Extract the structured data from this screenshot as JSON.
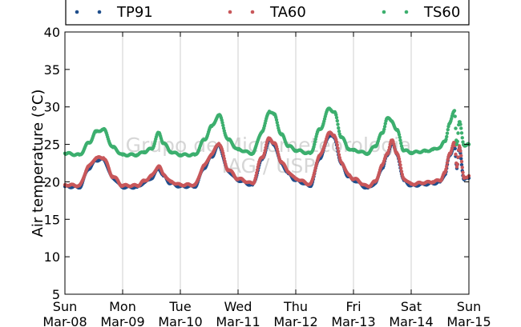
{
  "chart_data": {
    "type": "scatter",
    "title": "",
    "xlabel": "",
    "ylabel": "Air temperature (°C)",
    "ylim": [
      5,
      40
    ],
    "xlim": [
      "2015-03-08",
      "2015-03-15"
    ],
    "yticks": [
      5,
      10,
      15,
      20,
      25,
      30,
      35,
      40
    ],
    "xticks": [
      {
        "day": "Sun",
        "date": "Mar-08"
      },
      {
        "day": "Mon",
        "date": "Mar-09"
      },
      {
        "day": "Tue",
        "date": "Mar-10"
      },
      {
        "day": "Wed",
        "date": "Mar-11"
      },
      {
        "day": "Thu",
        "date": "Mar-12"
      },
      {
        "day": "Fri",
        "date": "Mar-13"
      },
      {
        "day": "Sat",
        "date": "Mar-14"
      },
      {
        "day": "Sun",
        "date": "Mar-15"
      }
    ],
    "grid": "vertical",
    "legend_position": "top",
    "watermark": [
      "Grupo de Micrometeorologia",
      "IAG / USP"
    ],
    "series": [
      {
        "name": "TP91",
        "color": "#1f4e8c",
        "x": [
          "03-08 00:00",
          "03-08 06:00",
          "03-08 10:00",
          "03-08 13:00",
          "03-08 16:00",
          "03-08 20:00",
          "03-09 00:00",
          "03-09 06:00",
          "03-09 09:00",
          "03-09 12:00",
          "03-09 15:00",
          "03-09 17:00",
          "03-09 20:00",
          "03-10 00:00",
          "03-10 06:00",
          "03-10 10:00",
          "03-10 13:00",
          "03-10 16:00",
          "03-10 20:00",
          "03-11 00:00",
          "03-11 06:00",
          "03-11 10:00",
          "03-11 13:00",
          "03-11 15:00",
          "03-11 18:00",
          "03-11 21:00",
          "03-12 00:00",
          "03-12 06:00",
          "03-12 10:00",
          "03-12 14:00",
          "03-12 16:00",
          "03-12 19:00",
          "03-12 22:00",
          "03-13 00:00",
          "03-13 06:00",
          "03-13 09:00",
          "03-13 12:00",
          "03-13 14:00",
          "03-13 16:00",
          "03-13 18:00",
          "03-13 21:00",
          "03-14 00:00",
          "03-14 06:00",
          "03-14 09:00",
          "03-14 12:00",
          "03-14 14:00",
          "03-14 16:00",
          "03-14 18:00",
          "03-14 19:00",
          "03-14 20:00",
          "03-14 22:00",
          "03-15 00:00"
        ],
        "y": [
          19.4,
          19.3,
          21.8,
          22.9,
          23.0,
          20.5,
          19.3,
          19.3,
          19.9,
          20.5,
          21.8,
          20.8,
          19.8,
          19.4,
          19.4,
          21.9,
          23.4,
          24.9,
          21.4,
          20.2,
          19.6,
          23.0,
          25.6,
          25.0,
          22.5,
          21.1,
          20.2,
          19.5,
          23.2,
          26.2,
          25.9,
          22.4,
          20.7,
          20.2,
          19.2,
          19.8,
          21.9,
          23.5,
          25.3,
          23.7,
          20.2,
          19.5,
          19.7,
          19.8,
          20.0,
          21.0,
          23.5,
          24.9,
          21.8,
          24.5,
          20.3,
          20.5
        ]
      },
      {
        "name": "TA60",
        "color": "#c8575a",
        "x": [
          "03-08 00:00",
          "03-08 06:00",
          "03-08 10:00",
          "03-08 13:00",
          "03-08 16:00",
          "03-08 20:00",
          "03-09 00:00",
          "03-09 06:00",
          "03-09 09:00",
          "03-09 12:00",
          "03-09 15:00",
          "03-09 17:00",
          "03-09 20:00",
          "03-10 00:00",
          "03-10 06:00",
          "03-10 10:00",
          "03-10 13:00",
          "03-10 16:00",
          "03-10 20:00",
          "03-11 00:00",
          "03-11 06:00",
          "03-11 10:00",
          "03-11 13:00",
          "03-11 15:00",
          "03-11 18:00",
          "03-11 21:00",
          "03-12 00:00",
          "03-12 06:00",
          "03-12 10:00",
          "03-12 14:00",
          "03-12 16:00",
          "03-12 19:00",
          "03-12 22:00",
          "03-13 00:00",
          "03-13 06:00",
          "03-13 09:00",
          "03-13 12:00",
          "03-13 14:00",
          "03-13 16:00",
          "03-13 18:00",
          "03-13 21:00",
          "03-14 00:00",
          "03-14 06:00",
          "03-14 09:00",
          "03-14 12:00",
          "03-14 14:00",
          "03-14 16:00",
          "03-14 18:00",
          "03-14 19:00",
          "03-14 20:00",
          "03-14 22:00",
          "03-15 00:00"
        ],
        "y": [
          19.6,
          19.5,
          22.1,
          23.2,
          23.2,
          20.7,
          19.5,
          19.5,
          20.1,
          20.8,
          22.1,
          21.0,
          20.0,
          19.6,
          19.6,
          22.2,
          23.7,
          25.1,
          21.6,
          20.4,
          19.8,
          23.3,
          25.8,
          25.2,
          22.7,
          21.3,
          20.4,
          19.7,
          23.5,
          26.5,
          26.2,
          22.6,
          20.9,
          20.4,
          19.4,
          20.0,
          22.2,
          23.8,
          25.5,
          23.9,
          20.4,
          19.7,
          19.9,
          20.0,
          20.2,
          21.2,
          23.8,
          25.2,
          22.0,
          24.8,
          20.5,
          20.8
        ]
      },
      {
        "name": "TS60",
        "color": "#3caf6e",
        "x": [
          "03-08 00:00",
          "03-08 06:00",
          "03-08 10:00",
          "03-08 13:00",
          "03-08 16:00",
          "03-08 20:00",
          "03-09 00:00",
          "03-09 06:00",
          "03-09 09:00",
          "03-09 12:00",
          "03-09 15:00",
          "03-09 17:00",
          "03-09 20:00",
          "03-10 00:00",
          "03-10 06:00",
          "03-10 10:00",
          "03-10 13:00",
          "03-10 16:00",
          "03-10 20:00",
          "03-11 00:00",
          "03-11 06:00",
          "03-11 10:00",
          "03-11 13:00",
          "03-11 15:00",
          "03-11 18:00",
          "03-11 21:00",
          "03-12 00:00",
          "03-12 06:00",
          "03-12 10:00",
          "03-12 14:00",
          "03-12 16:00",
          "03-12 19:00",
          "03-12 22:00",
          "03-13 00:00",
          "03-13 06:00",
          "03-13 09:00",
          "03-13 12:00",
          "03-13 14:00",
          "03-13 16:00",
          "03-13 18:00",
          "03-13 21:00",
          "03-14 00:00",
          "03-14 06:00",
          "03-14 09:00",
          "03-14 12:00",
          "03-14 14:00",
          "03-14 16:00",
          "03-14 18:00",
          "03-14 19:00",
          "03-14 20:00",
          "03-14 22:00",
          "03-15 00:00"
        ],
        "y": [
          23.8,
          23.6,
          25.2,
          26.7,
          27.0,
          24.6,
          23.6,
          23.6,
          24.0,
          24.4,
          26.5,
          25.2,
          24.0,
          23.6,
          23.6,
          25.6,
          27.4,
          28.9,
          25.6,
          24.3,
          23.8,
          26.7,
          29.4,
          29.0,
          26.3,
          24.8,
          24.2,
          23.8,
          27.0,
          29.8,
          29.3,
          26.0,
          24.4,
          24.2,
          23.8,
          24.8,
          26.5,
          28.5,
          28.1,
          26.9,
          24.2,
          23.9,
          24.1,
          24.3,
          24.6,
          25.4,
          27.8,
          29.5,
          25.0,
          28.0,
          24.9,
          25.0
        ]
      }
    ]
  }
}
